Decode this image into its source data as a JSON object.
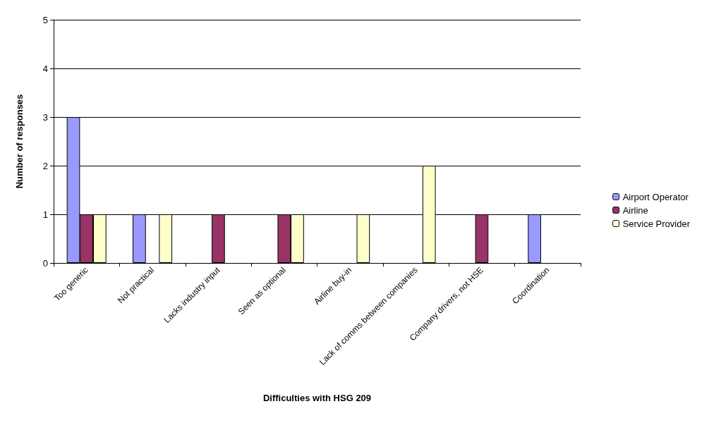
{
  "chart_data": {
    "type": "bar",
    "xlabel": "Difficulties with HSG 209",
    "ylabel": "Number of responses",
    "categories": [
      "Too generic",
      "Not practical",
      "Lacks industry input",
      "Seen as optional",
      "Airline buy-in",
      "Lack of comms between companies",
      "Company drivers, not HSE",
      "Coordination"
    ],
    "series": [
      {
        "name": "Airport Operator",
        "color": "#9999ff",
        "values": [
          3,
          1,
          0,
          0,
          0,
          0,
          0,
          1
        ]
      },
      {
        "name": "Airline",
        "color": "#993366",
        "values": [
          1,
          0,
          1,
          1,
          0,
          0,
          1,
          0
        ]
      },
      {
        "name": "Service Provider",
        "color": "#ffffcc",
        "values": [
          1,
          1,
          0,
          1,
          1,
          2,
          0,
          0
        ]
      }
    ],
    "ylim": [
      0,
      5
    ],
    "yticks": [
      0,
      1,
      2,
      3,
      4,
      5
    ],
    "grid": "y",
    "legend": "right"
  }
}
